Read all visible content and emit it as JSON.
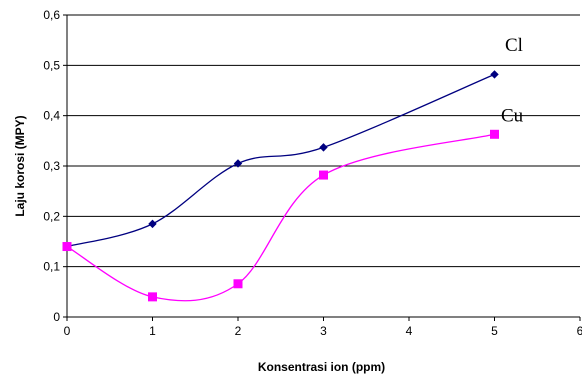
{
  "chart_data": {
    "type": "line",
    "title": "",
    "xlabel": "Konsentrasi ion (ppm)",
    "ylabel": "Laju korosi (MPY)",
    "xlim": [
      0,
      6
    ],
    "ylim": [
      0,
      0.6
    ],
    "xticks": [
      "0",
      "1",
      "2",
      "3",
      "4",
      "5",
      "6"
    ],
    "yticks": [
      "0",
      "0,1",
      "0,2",
      "0,3",
      "0,4",
      "0,5",
      "0,6"
    ],
    "grid": "horizontal",
    "smooth": true,
    "series": [
      {
        "name": "Cl",
        "color": "#000080",
        "marker": "diamond",
        "x": [
          0,
          1,
          2,
          3,
          5
        ],
        "y": [
          0.14,
          0.185,
          0.305,
          0.337,
          0.482
        ]
      },
      {
        "name": "Cu",
        "color": "#ff00ff",
        "marker": "square",
        "x": [
          0,
          1,
          2,
          3,
          5
        ],
        "y": [
          0.14,
          0.04,
          0.066,
          0.282,
          0.363
        ]
      }
    ]
  }
}
